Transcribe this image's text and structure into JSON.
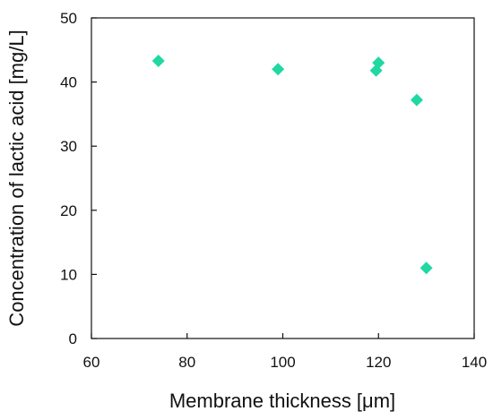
{
  "chart_data": {
    "type": "scatter",
    "xlabel": "Membrane thickness [μm]",
    "ylabel": "Concentration of lactic acid [mg/L]",
    "xlim": [
      60,
      140
    ],
    "ylim": [
      0,
      50
    ],
    "xticks": [
      60,
      80,
      100,
      120,
      140
    ],
    "yticks": [
      0,
      10,
      20,
      30,
      40,
      50
    ],
    "grid": false,
    "marker": "diamond",
    "marker_color": "#1fd8a2",
    "series": [
      {
        "x": [
          74,
          99,
          119.5,
          120,
          128,
          130
        ],
        "y": [
          43.3,
          42.0,
          41.8,
          43.0,
          37.2,
          11.0
        ]
      }
    ]
  }
}
